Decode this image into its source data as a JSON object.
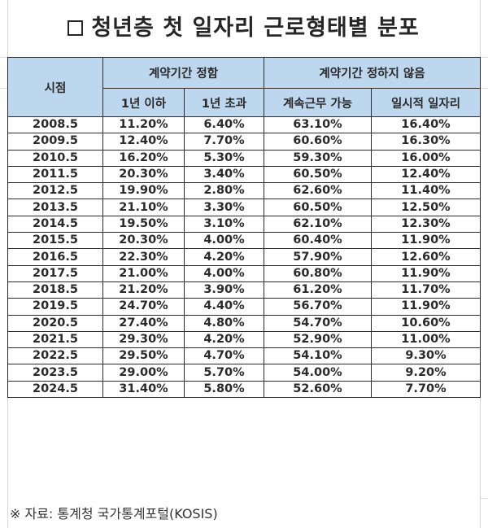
{
  "title": {
    "icon": "square-box-icon",
    "text": "청년층 첫 일자리 근로형태별 분포"
  },
  "table": {
    "header": {
      "period_label": "시점",
      "group_fixed": "계약기간 정함",
      "group_unfixed": "계약기간 정하지 않음",
      "columns": [
        "1년 이하",
        "1년 초과",
        "계속근무 가능",
        "일시적 일자리"
      ]
    },
    "rows": [
      {
        "period": "2008.5",
        "le1y": "11.20%",
        "gt1y": "6.40%",
        "continuous": "63.10%",
        "temporary": "16.40%"
      },
      {
        "period": "2009.5",
        "le1y": "12.40%",
        "gt1y": "7.70%",
        "continuous": "60.60%",
        "temporary": "16.30%"
      },
      {
        "period": "2010.5",
        "le1y": "16.20%",
        "gt1y": "5.30%",
        "continuous": "59.30%",
        "temporary": "16.00%"
      },
      {
        "period": "2011.5",
        "le1y": "20.30%",
        "gt1y": "3.40%",
        "continuous": "60.50%",
        "temporary": "12.40%"
      },
      {
        "period": "2012.5",
        "le1y": "19.90%",
        "gt1y": "2.80%",
        "continuous": "62.60%",
        "temporary": "11.40%"
      },
      {
        "period": "2013.5",
        "le1y": "21.10%",
        "gt1y": "3.30%",
        "continuous": "60.50%",
        "temporary": "12.50%"
      },
      {
        "period": "2014.5",
        "le1y": "19.50%",
        "gt1y": "3.10%",
        "continuous": "62.10%",
        "temporary": "12.30%"
      },
      {
        "period": "2015.5",
        "le1y": "20.30%",
        "gt1y": "4.00%",
        "continuous": "60.40%",
        "temporary": "11.90%"
      },
      {
        "period": "2016.5",
        "le1y": "22.30%",
        "gt1y": "4.20%",
        "continuous": "57.90%",
        "temporary": "12.60%"
      },
      {
        "period": "2017.5",
        "le1y": "21.00%",
        "gt1y": "4.00%",
        "continuous": "60.80%",
        "temporary": "11.90%"
      },
      {
        "period": "2018.5",
        "le1y": "21.20%",
        "gt1y": "3.90%",
        "continuous": "61.20%",
        "temporary": "11.70%"
      },
      {
        "period": "2019.5",
        "le1y": "24.70%",
        "gt1y": "4.40%",
        "continuous": "56.70%",
        "temporary": "11.90%"
      },
      {
        "period": "2020.5",
        "le1y": "27.40%",
        "gt1y": "4.80%",
        "continuous": "54.70%",
        "temporary": "10.60%"
      },
      {
        "period": "2021.5",
        "le1y": "29.30%",
        "gt1y": "4.20%",
        "continuous": "52.90%",
        "temporary": "11.00%"
      },
      {
        "period": "2022.5",
        "le1y": "29.50%",
        "gt1y": "4.70%",
        "continuous": "54.10%",
        "temporary": "9.30%"
      },
      {
        "period": "2023.5",
        "le1y": "29.00%",
        "gt1y": "5.70%",
        "continuous": "54.00%",
        "temporary": "9.20%"
      },
      {
        "period": "2024.5",
        "le1y": "31.40%",
        "gt1y": "5.80%",
        "continuous": "52.60%",
        "temporary": "7.70%"
      }
    ]
  },
  "source": "※ 자료: 통계청 국가통계포털(KOSIS)",
  "colors": {
    "header_bg": "#bdd7ee",
    "border": "#2b2b2b",
    "gridline": "#d9d9d9"
  }
}
